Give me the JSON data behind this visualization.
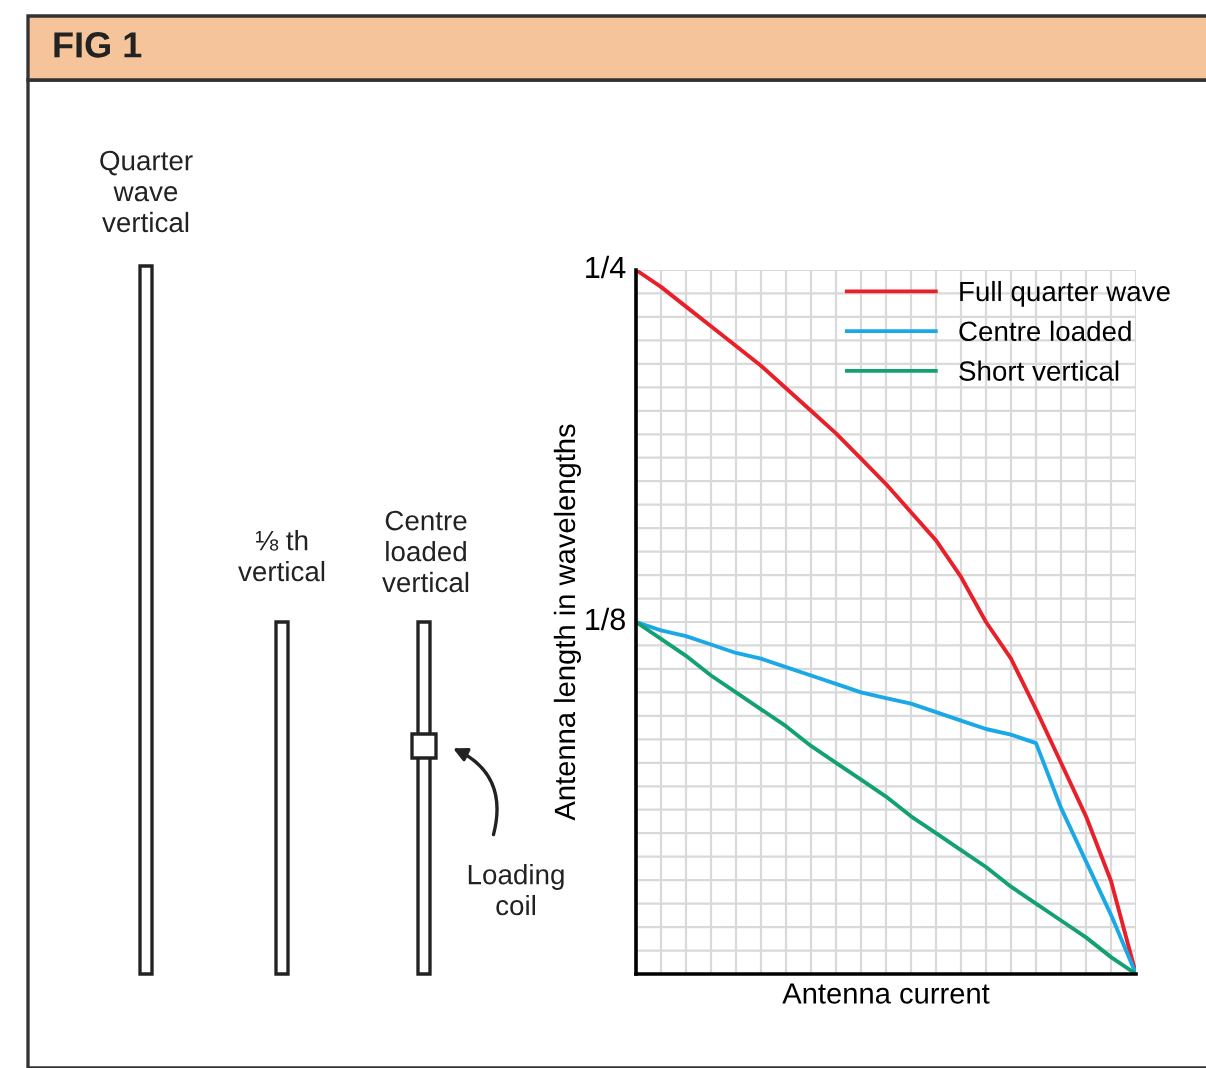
{
  "chart_data": {
    "type": "line",
    "title": "FIG 1",
    "xlabel": "Antenna current",
    "ylabel": "Antenna length in wavelengths",
    "categories": [
      null,
      null,
      null,
      null,
      null,
      null,
      null,
      null,
      null,
      null,
      null,
      null,
      null,
      null,
      null,
      null,
      null,
      null,
      null,
      null,
      null
    ],
    "series": [
      {
        "name": "Full quarter wave",
        "color": "#e8202a",
        "values": [
          0.25,
          0.244,
          0.237,
          0.23,
          0.223,
          0.216,
          0.208,
          0.2,
          0.192,
          0.183,
          0.174,
          0.164,
          0.154,
          0.141,
          0.125,
          0.112,
          0.094,
          0.075,
          0.056,
          0.033,
          0
        ]
      },
      {
        "name": "Centre loaded",
        "color": "#1aa9e6",
        "values": [
          0.125,
          0.122,
          0.12,
          0.117,
          0.114,
          0.112,
          0.109,
          0.106,
          0.103,
          0.1,
          0.098,
          0.096,
          0.093,
          0.09,
          0.087,
          0.085,
          0.082,
          0.059,
          0.04,
          0.021,
          0
        ]
      },
      {
        "name": "Short vertical",
        "color": "#13a073",
        "values": [
          0.125,
          0.119,
          0.113,
          0.106,
          0.1,
          0.094,
          0.088,
          0.081,
          0.075,
          0.069,
          0.063,
          0.056,
          0.05,
          0.044,
          0.038,
          0.031,
          0.025,
          0.019,
          0.013,
          0.006,
          0
        ]
      }
    ],
    "ylim": [
      0,
      0.25
    ],
    "yticks": [
      {
        "value": 0.125,
        "label": "1/8"
      },
      {
        "value": 0.25,
        "label": "1/4"
      }
    ],
    "tick_labels": "y",
    "grid": true,
    "legend": "top right",
    "marker": "none",
    "line_style": "solid",
    "annotations": [
      "Quarter\nwave\nvertical",
      "⅛ th\nvertical",
      "Centre\nloaded\nvertical",
      "Loading\ncoil"
    ]
  }
}
